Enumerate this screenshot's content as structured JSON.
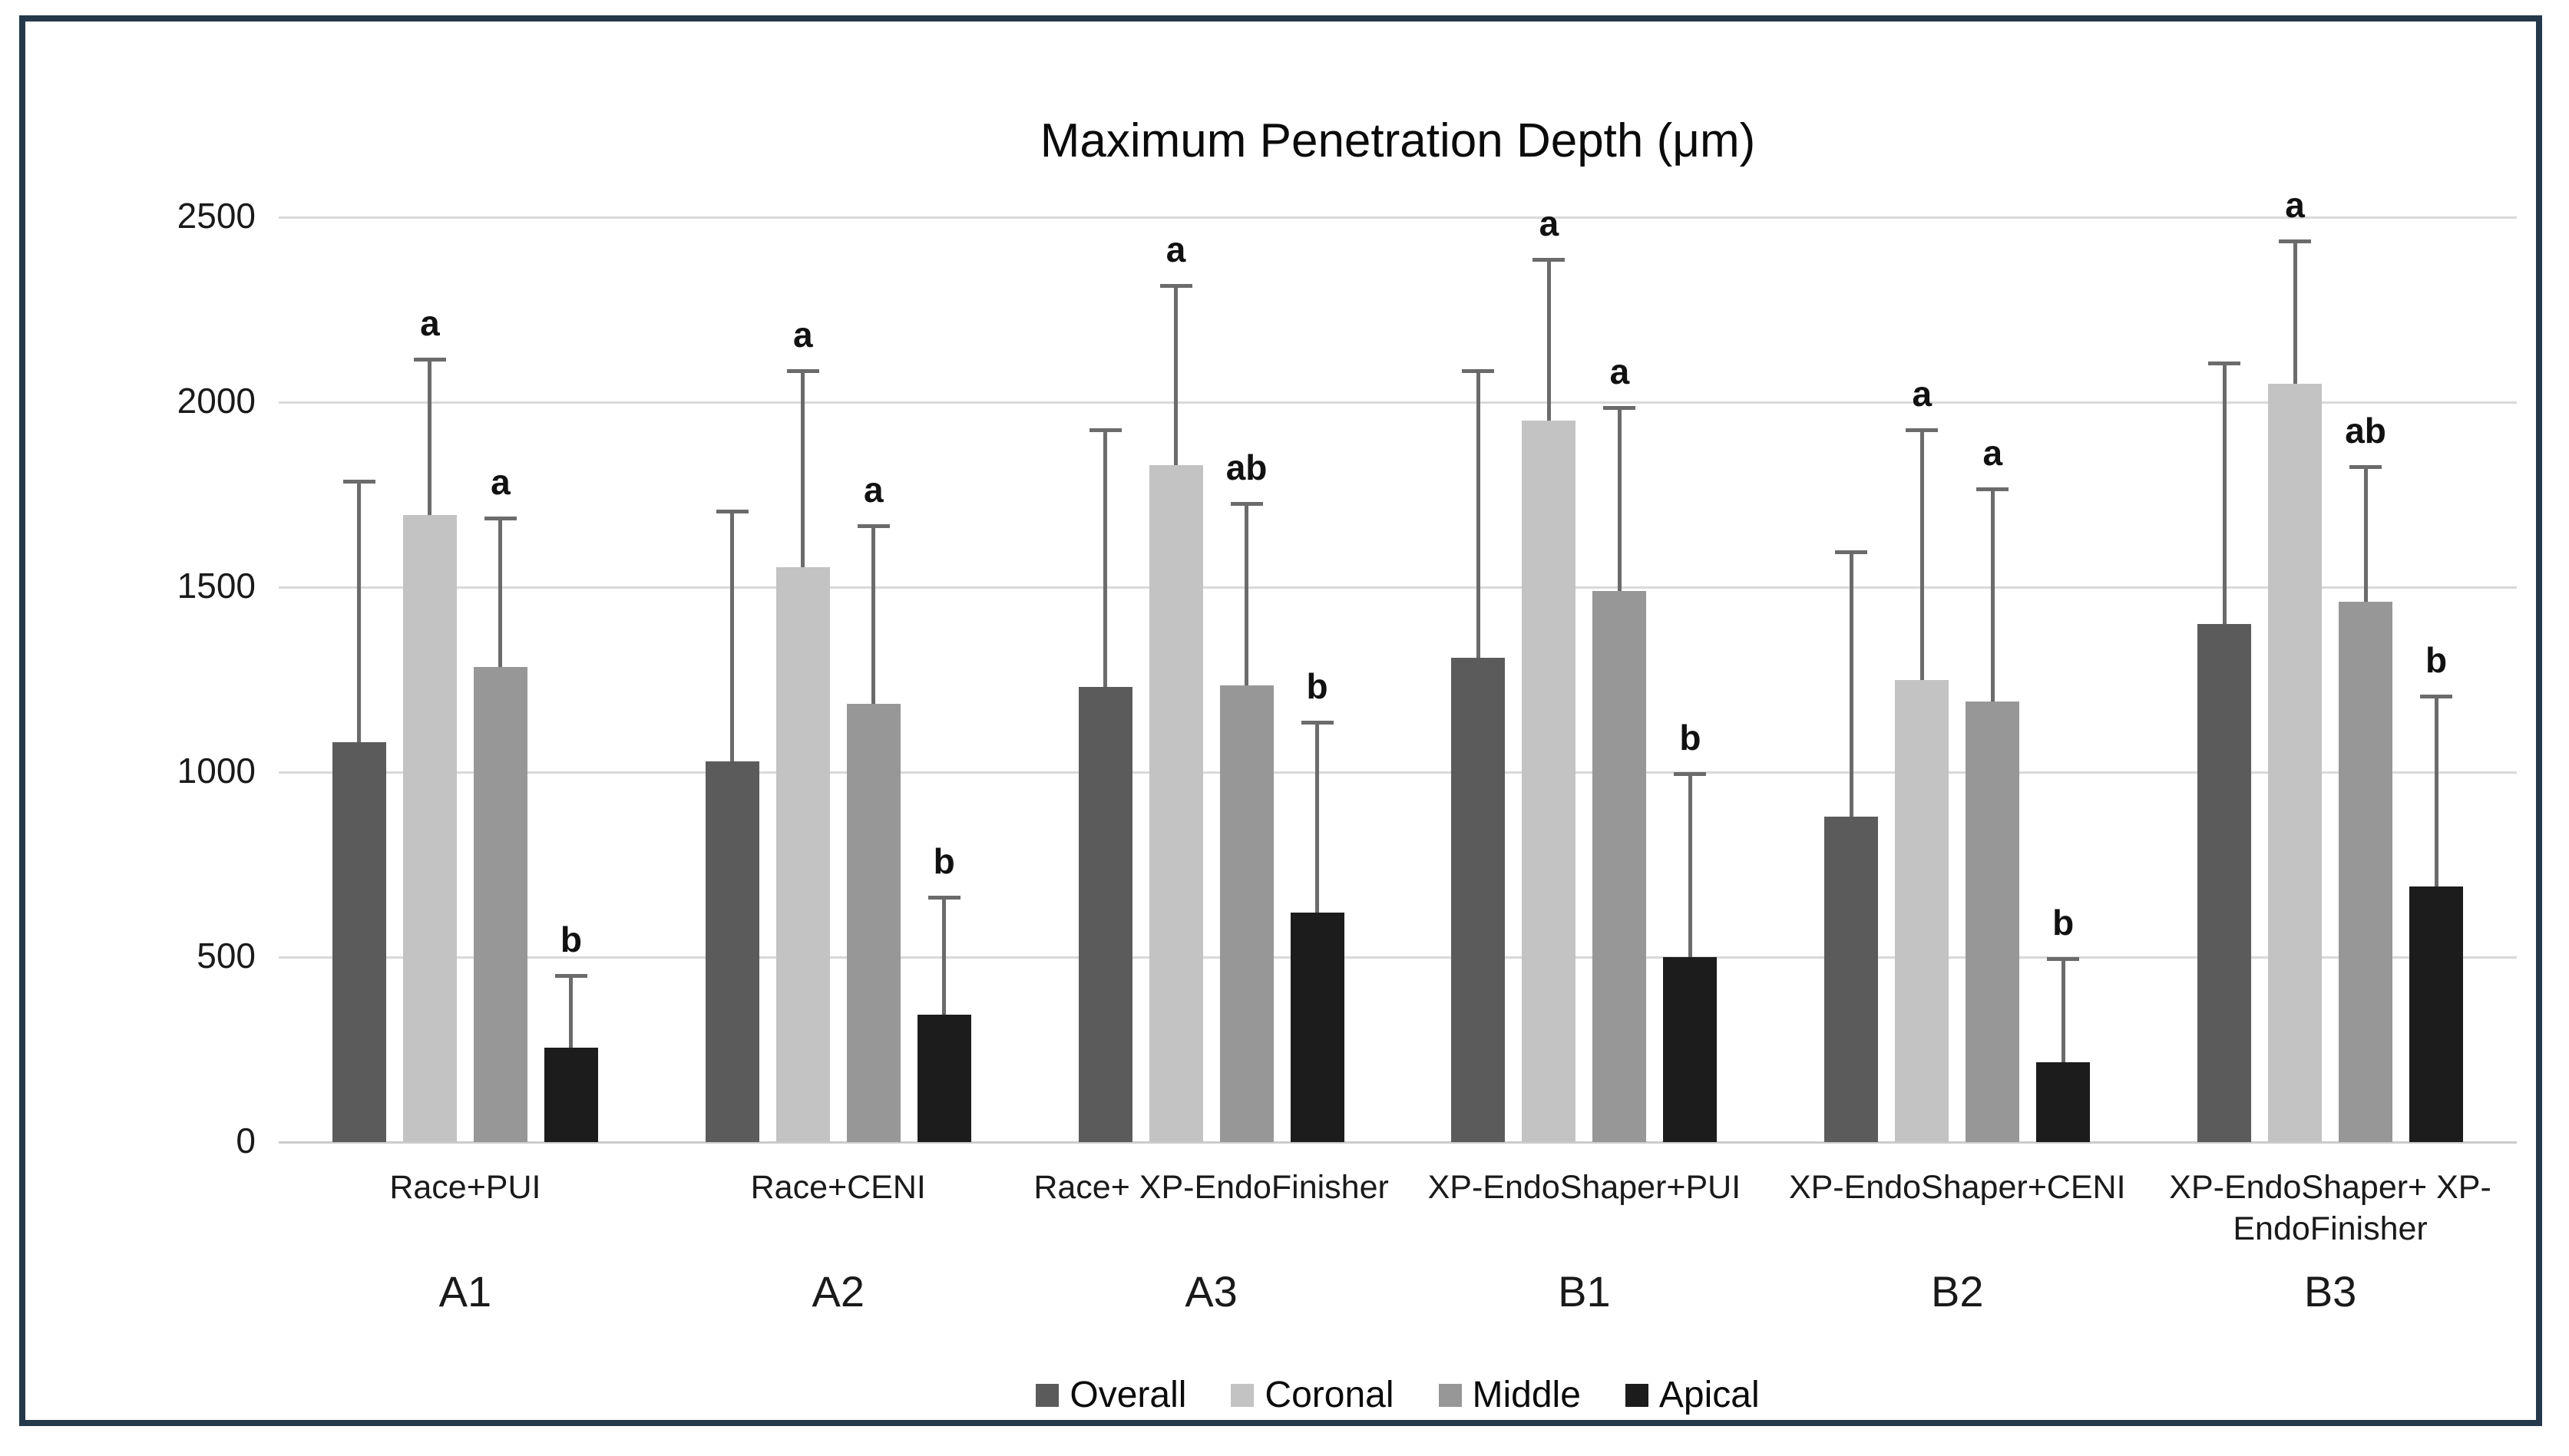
{
  "figure": {
    "title": "Maximum Penetration Depth (μm)",
    "border_color": "#24394a",
    "background_color": "#ffffff"
  },
  "chart_data": {
    "type": "bar",
    "title": "Maximum Penetration Depth (μm)",
    "xlabel": "",
    "ylabel": "",
    "ylim": [
      0,
      2500
    ],
    "yticks": [
      0,
      500,
      1000,
      1500,
      2000,
      2500
    ],
    "grid": true,
    "legend_position": "bottom",
    "gridline_color": "#d9d9d9",
    "error_bar_color": "#6b6b6b",
    "series": [
      {
        "name": "Overall",
        "color": "#5b5b5b"
      },
      {
        "name": "Coronal",
        "color": "#c3c3c3"
      },
      {
        "name": "Middle",
        "color": "#979797"
      },
      {
        "name": "Apical",
        "color": "#1c1c1c"
      }
    ],
    "groups": [
      {
        "label": "Race+PUI",
        "sublabel": "A1",
        "bars": [
          {
            "series": "Overall",
            "value": 1080,
            "error": 710,
            "letter": ""
          },
          {
            "series": "Coronal",
            "value": 1695,
            "error": 425,
            "letter": "a"
          },
          {
            "series": "Middle",
            "value": 1285,
            "error": 405,
            "letter": "a"
          },
          {
            "series": "Apical",
            "value": 255,
            "error": 200,
            "letter": "b"
          }
        ]
      },
      {
        "label": "Race+CENI",
        "sublabel": "A2",
        "bars": [
          {
            "series": "Overall",
            "value": 1030,
            "error": 680,
            "letter": ""
          },
          {
            "series": "Coronal",
            "value": 1555,
            "error": 535,
            "letter": "a"
          },
          {
            "series": "Middle",
            "value": 1185,
            "error": 485,
            "letter": "a"
          },
          {
            "series": "Apical",
            "value": 345,
            "error": 320,
            "letter": "b"
          }
        ]
      },
      {
        "label": "Race+ XP-EndoFinisher",
        "sublabel": "A3",
        "bars": [
          {
            "series": "Overall",
            "value": 1230,
            "error": 700,
            "letter": ""
          },
          {
            "series": "Coronal",
            "value": 1830,
            "error": 490,
            "letter": "a"
          },
          {
            "series": "Middle",
            "value": 1235,
            "error": 495,
            "letter": "ab"
          },
          {
            "series": "Apical",
            "value": 620,
            "error": 520,
            "letter": "b"
          }
        ]
      },
      {
        "label": "XP-EndoShaper+PUI",
        "sublabel": "B1",
        "bars": [
          {
            "series": "Overall",
            "value": 1310,
            "error": 780,
            "letter": ""
          },
          {
            "series": "Coronal",
            "value": 1950,
            "error": 440,
            "letter": "a"
          },
          {
            "series": "Middle",
            "value": 1490,
            "error": 500,
            "letter": "a"
          },
          {
            "series": "Apical",
            "value": 500,
            "error": 500,
            "letter": "b"
          }
        ]
      },
      {
        "label": "XP-EndoShaper+CENI",
        "sublabel": "B2",
        "bars": [
          {
            "series": "Overall",
            "value": 880,
            "error": 720,
            "letter": ""
          },
          {
            "series": "Coronal",
            "value": 1250,
            "error": 680,
            "letter": "a"
          },
          {
            "series": "Middle",
            "value": 1190,
            "error": 580,
            "letter": "a"
          },
          {
            "series": "Apical",
            "value": 215,
            "error": 285,
            "letter": "b"
          }
        ]
      },
      {
        "label": "XP-EndoShaper+ XP-EndoFinisher",
        "sublabel": "B3",
        "bars": [
          {
            "series": "Overall",
            "value": 1400,
            "error": 710,
            "letter": ""
          },
          {
            "series": "Coronal",
            "value": 2050,
            "error": 390,
            "letter": "a"
          },
          {
            "series": "Middle",
            "value": 1460,
            "error": 370,
            "letter": "ab"
          },
          {
            "series": "Apical",
            "value": 690,
            "error": 520,
            "letter": "b"
          }
        ]
      }
    ],
    "legend": [
      "Overall",
      "Coronal",
      "Middle",
      "Apical"
    ]
  }
}
